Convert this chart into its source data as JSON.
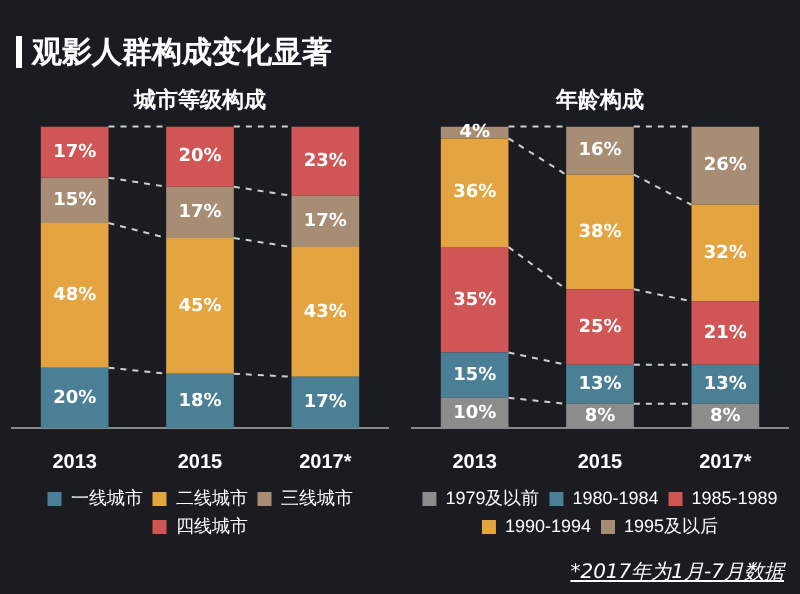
{
  "chart_data": [
    {
      "type": "bar",
      "stacked": true,
      "title": "城市等级构成",
      "annotations": [
        "观影人群构成变化显著"
      ],
      "categories": [
        "2013",
        "2015",
        "2017*"
      ],
      "legend": "bottom",
      "grid": false,
      "series": [
        {
          "name": "一线城市",
          "color": "#4b7f96",
          "values": [
            20,
            18,
            17
          ],
          "value_labels": [
            "20%",
            "18%",
            "17%"
          ]
        },
        {
          "name": "二线城市",
          "color": "#e4a540",
          "values": [
            48,
            45,
            43
          ],
          "value_labels": [
            "48%",
            "45%",
            "43%"
          ]
        },
        {
          "name": "三线城市",
          "color": "#a68d74",
          "values": [
            15,
            17,
            17
          ],
          "value_labels": [
            "15%",
            "17%",
            "17%"
          ]
        },
        {
          "name": "四线城市",
          "color": "#d05656",
          "values": [
            17,
            20,
            23
          ],
          "value_labels": [
            "17%",
            "20%",
            "23%"
          ]
        }
      ]
    },
    {
      "type": "bar",
      "stacked": true,
      "title": "年龄构成",
      "annotations": [
        "*2017年为1月-7月数据"
      ],
      "categories": [
        "2013",
        "2015",
        "2017*"
      ],
      "legend": "bottom",
      "grid": false,
      "series": [
        {
          "name": "1979及以前",
          "color": "#8c8c8c",
          "values": [
            10,
            8,
            8
          ],
          "value_labels": [
            "10%",
            "8%",
            "8%"
          ]
        },
        {
          "name": "1980-1984",
          "color": "#4b7f96",
          "values": [
            15,
            13,
            13
          ],
          "value_labels": [
            "15%",
            "13%",
            "13%"
          ]
        },
        {
          "name": "1985-1989",
          "color": "#d05656",
          "values": [
            35,
            25,
            21
          ],
          "value_labels": [
            "35%",
            "25%",
            "21%"
          ]
        },
        {
          "name": "1990-1994",
          "color": "#e4a540",
          "values": [
            36,
            38,
            32
          ],
          "value_labels": [
            "36%",
            "38%",
            "32%"
          ]
        },
        {
          "name": "1995及以后",
          "color": "#a68d74",
          "values": [
            4,
            16,
            26
          ],
          "value_labels": [
            "4%",
            "16%",
            "26%"
          ]
        }
      ]
    }
  ]
}
